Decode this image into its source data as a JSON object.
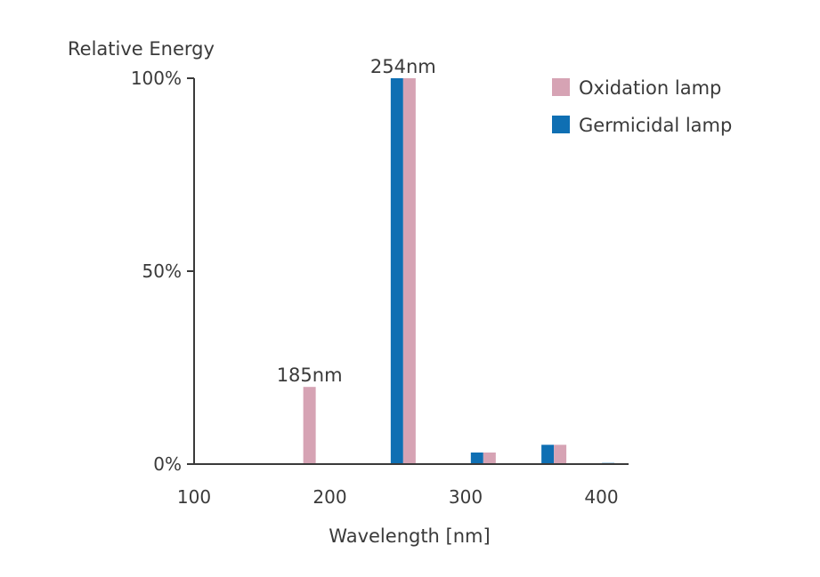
{
  "chart_data": {
    "type": "bar",
    "ylabel": "Relative Energy",
    "xlabel": "Wavelength [nm]",
    "xlim": [
      100,
      420
    ],
    "ylim": [
      0,
      100
    ],
    "x_ticks": [
      "100",
      "200",
      "300",
      "400"
    ],
    "x_tick_values": [
      100,
      200,
      300,
      400
    ],
    "y_ticks": [
      "0%",
      "50%",
      "100%"
    ],
    "y_tick_values": [
      0,
      50,
      100
    ],
    "series": [
      {
        "name": "Germicidal lamp",
        "color": "#0f6fb3",
        "x": [
          254,
          313,
          365,
          405
        ],
        "values": [
          100,
          3,
          5,
          0.3
        ]
      },
      {
        "name": "Oxidation lamp",
        "color": "#d6a3b4",
        "x": [
          185,
          254,
          313,
          365
        ],
        "values": [
          20,
          100,
          3,
          5
        ]
      }
    ],
    "annotations": [
      {
        "text": "254nm",
        "x": 254,
        "y": 100
      },
      {
        "text": "185nm",
        "x": 185,
        "y": 20
      }
    ],
    "legend_position": "top-right",
    "legend": [
      "Oxidation lamp",
      "Germicidal lamp"
    ]
  }
}
